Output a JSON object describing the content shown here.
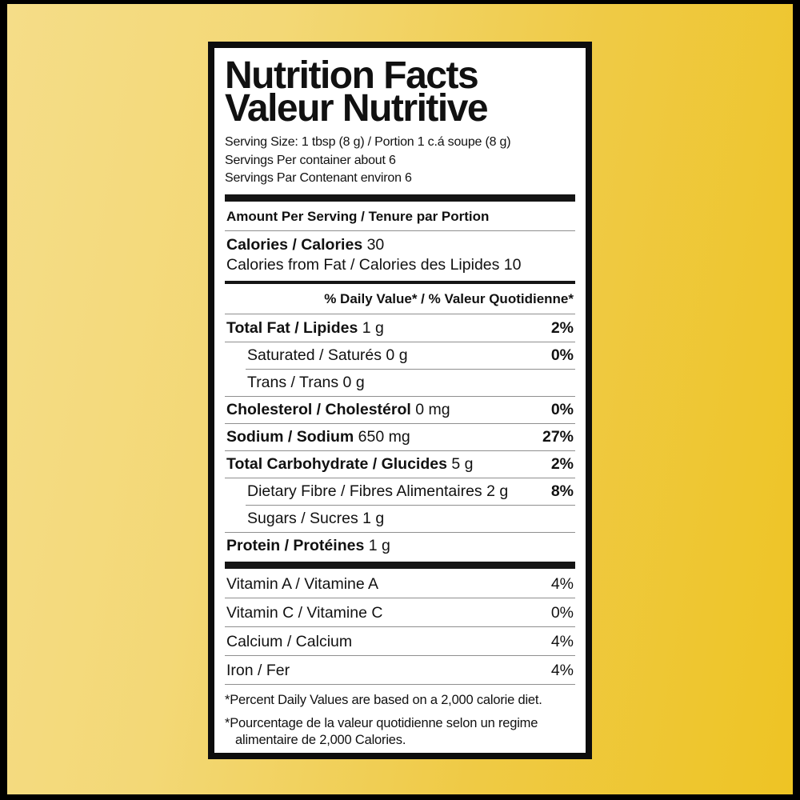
{
  "label": {
    "title_en": "Nutrition Facts",
    "title_fr": "Valeur Nutritive",
    "serving_size": "Serving Size: 1 tbsp (8 g) / Portion 1 c.á soupe (8 g)",
    "servings_per_container_en": "Servings Per container about 6",
    "servings_per_container_fr": "Servings Par Contenant environ 6",
    "amount_per_serving": "Amount Per Serving / Tenure par Portion",
    "calories_label": "Calories / Calories",
    "calories_value": " 30",
    "calories_from_fat": "Calories from Fat / Calories des Lipides 10",
    "daily_value_header": "% Daily Value* / % Valeur Quotidienne*",
    "nutrients": [
      {
        "bold": "Total Fat / Lipides",
        "rest": " 1 g",
        "pct": "2%"
      },
      {
        "bold": "",
        "rest": "Saturated / Saturés 0 g",
        "pct": "0%"
      },
      {
        "bold": "",
        "rest": "Trans / Trans 0 g",
        "pct": ""
      },
      {
        "bold": "Cholesterol / Cholestérol",
        "rest": " 0 mg",
        "pct": "0%"
      },
      {
        "bold": "Sodium / Sodium",
        "rest": " 650 mg",
        "pct": "27%"
      },
      {
        "bold": "Total Carbohydrate / Glucides",
        "rest": " 5 g",
        "pct": "2%"
      },
      {
        "bold": "",
        "rest": "Dietary Fibre / Fibres Alimentaires 2 g",
        "pct": "8%"
      },
      {
        "bold": "",
        "rest": "Sugars / Sucres 1 g",
        "pct": ""
      },
      {
        "bold": "Protein / Protéines",
        "rest": " 1 g",
        "pct": ""
      }
    ],
    "vitamins": [
      {
        "name": "Vitamin A / Vitamine A",
        "pct": "4%"
      },
      {
        "name": "Vitamin C / Vitamine C",
        "pct": "0%"
      },
      {
        "name": "Calcium / Calcium",
        "pct": "4%"
      },
      {
        "name": "Iron / Fer",
        "pct": "4%"
      }
    ],
    "footnotes": [
      "*Percent Daily Values are based on a 2,000 calorie diet.",
      "*Pourcentage de la valeur quotidienne selon un regime alimentaire de 2,000 Calories."
    ],
    "colors": {
      "background_gold": "#eec424",
      "background_light_gold": "#f5dd88",
      "frame_black": "#000000",
      "label_border": "#0d0d0d",
      "separator_gray": "#8f8f8f"
    }
  }
}
